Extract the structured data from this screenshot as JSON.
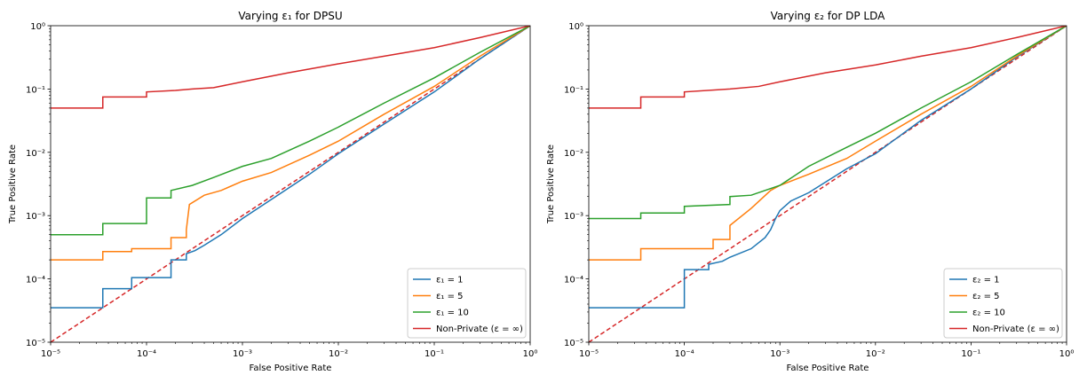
{
  "chart_data": [
    {
      "type": "line",
      "title": "Varying ε₁ for DPSU",
      "xlabel": "False Positive Rate",
      "ylabel": "True Positive Rate",
      "xscale": "log",
      "yscale": "log",
      "xlim": [
        1e-05,
        1
      ],
      "ylim": [
        1e-05,
        1
      ],
      "grid": false,
      "legend_position": "lower right",
      "x_tick_labels": [
        "10⁻⁵",
        "10⁻⁴",
        "10⁻³",
        "10⁻²",
        "10⁻¹",
        "10⁰"
      ],
      "y_tick_labels": [
        "10⁻⁵",
        "10⁻⁴",
        "10⁻³",
        "10⁻²",
        "10⁻¹",
        "10⁰"
      ],
      "series": [
        {
          "name": "ε₁ = 1",
          "color": "#1f77b4",
          "style": "steps",
          "points": [
            [
              1e-05,
              3.5e-05
            ],
            [
              3.5e-05,
              3.5e-05
            ],
            [
              3.5e-05,
              7e-05
            ],
            [
              7e-05,
              7e-05
            ],
            [
              7e-05,
              0.000105
            ],
            [
              0.00018,
              0.000105
            ],
            [
              0.00018,
              0.0002
            ],
            [
              0.00026,
              0.0002
            ],
            [
              0.00026,
              0.00025
            ],
            [
              0.00032,
              0.00028
            ],
            [
              0.0004,
              0.00034
            ],
            [
              0.0006,
              0.0005
            ],
            [
              0.001,
              0.0009
            ],
            [
              0.002,
              0.0018
            ],
            [
              0.005,
              0.0045
            ],
            [
              0.01,
              0.0095
            ],
            [
              0.03,
              0.028
            ],
            [
              0.1,
              0.09
            ],
            [
              0.3,
              0.3
            ],
            [
              1,
              1
            ]
          ]
        },
        {
          "name": "ε₁ = 5",
          "color": "#ff7f0e",
          "style": "steps",
          "points": [
            [
              1e-05,
              0.0002
            ],
            [
              3.5e-05,
              0.0002
            ],
            [
              3.5e-05,
              0.00027
            ],
            [
              7e-05,
              0.00027
            ],
            [
              7e-05,
              0.0003
            ],
            [
              0.00018,
              0.0003
            ],
            [
              0.00018,
              0.00045
            ],
            [
              0.00026,
              0.00045
            ],
            [
              0.00026,
              0.0006
            ],
            [
              0.00028,
              0.0015
            ],
            [
              0.0004,
              0.0021
            ],
            [
              0.0006,
              0.0025
            ],
            [
              0.001,
              0.0035
            ],
            [
              0.002,
              0.0048
            ],
            [
              0.005,
              0.009
            ],
            [
              0.01,
              0.015
            ],
            [
              0.03,
              0.04
            ],
            [
              0.1,
              0.11
            ],
            [
              0.3,
              0.33
            ],
            [
              1,
              1
            ]
          ]
        },
        {
          "name": "ε₁ = 10",
          "color": "#2ca02c",
          "style": "steps",
          "points": [
            [
              1e-05,
              0.0005
            ],
            [
              3.5e-05,
              0.0005
            ],
            [
              3.5e-05,
              0.00075
            ],
            [
              0.0001,
              0.00075
            ],
            [
              0.0001,
              0.0019
            ],
            [
              0.00018,
              0.0019
            ],
            [
              0.00018,
              0.0025
            ],
            [
              0.0003,
              0.003
            ],
            [
              0.0005,
              0.004
            ],
            [
              0.001,
              0.006
            ],
            [
              0.002,
              0.008
            ],
            [
              0.005,
              0.015
            ],
            [
              0.01,
              0.025
            ],
            [
              0.03,
              0.06
            ],
            [
              0.1,
              0.15
            ],
            [
              0.3,
              0.38
            ],
            [
              1,
              1
            ]
          ]
        },
        {
          "name": "Non-Private (ε = ∞)",
          "color": "#d62728",
          "style": "steps",
          "points": [
            [
              1e-05,
              0.05
            ],
            [
              3.5e-05,
              0.05
            ],
            [
              3.5e-05,
              0.075
            ],
            [
              0.0001,
              0.075
            ],
            [
              0.0001,
              0.09
            ],
            [
              0.0002,
              0.095
            ],
            [
              0.0003,
              0.1
            ],
            [
              0.0005,
              0.105
            ],
            [
              0.001,
              0.13
            ],
            [
              0.003,
              0.18
            ],
            [
              0.01,
              0.25
            ],
            [
              0.03,
              0.33
            ],
            [
              0.1,
              0.45
            ],
            [
              0.3,
              0.65
            ],
            [
              1,
              1
            ]
          ]
        }
      ],
      "reference_line": {
        "color": "#d62728",
        "dashed": true,
        "points": [
          [
            1e-05,
            1e-05
          ],
          [
            1,
            1
          ]
        ]
      }
    },
    {
      "type": "line",
      "title": "Varying ε₂ for DP LDA",
      "xlabel": "False Positive Rate",
      "ylabel": "True Positive Rate",
      "xscale": "log",
      "yscale": "log",
      "xlim": [
        1e-05,
        1
      ],
      "ylim": [
        1e-05,
        1
      ],
      "grid": false,
      "legend_position": "lower right",
      "x_tick_labels": [
        "10⁻⁵",
        "10⁻⁴",
        "10⁻³",
        "10⁻²",
        "10⁻¹",
        "10⁰"
      ],
      "y_tick_labels": [
        "10⁻⁵",
        "10⁻⁴",
        "10⁻³",
        "10⁻²",
        "10⁻¹",
        "10⁰"
      ],
      "series": [
        {
          "name": "ε₂ = 1",
          "color": "#1f77b4",
          "style": "steps",
          "points": [
            [
              1e-05,
              3.5e-05
            ],
            [
              0.0001,
              3.5e-05
            ],
            [
              0.0001,
              0.00014
            ],
            [
              0.00018,
              0.00014
            ],
            [
              0.00018,
              0.00017
            ],
            [
              0.00025,
              0.00019
            ],
            [
              0.0003,
              0.00022
            ],
            [
              0.0005,
              0.0003
            ],
            [
              0.0007,
              0.00045
            ],
            [
              0.0008,
              0.0006
            ],
            [
              0.0009,
              0.0009
            ],
            [
              0.001,
              0.0012
            ],
            [
              0.0013,
              0.0017
            ],
            [
              0.002,
              0.0023
            ],
            [
              0.005,
              0.0055
            ],
            [
              0.01,
              0.0095
            ],
            [
              0.03,
              0.032
            ],
            [
              0.1,
              0.1
            ],
            [
              0.3,
              0.32
            ],
            [
              1,
              1
            ]
          ]
        },
        {
          "name": "ε₂ = 5",
          "color": "#ff7f0e",
          "style": "steps",
          "points": [
            [
              1e-05,
              0.0002
            ],
            [
              3.5e-05,
              0.0002
            ],
            [
              3.5e-05,
              0.0003
            ],
            [
              0.0001,
              0.0003
            ],
            [
              0.0002,
              0.0003
            ],
            [
              0.0002,
              0.00042
            ],
            [
              0.0003,
              0.00042
            ],
            [
              0.0003,
              0.0007
            ],
            [
              0.0005,
              0.0013
            ],
            [
              0.0008,
              0.0025
            ],
            [
              0.001,
              0.003
            ],
            [
              0.002,
              0.0045
            ],
            [
              0.005,
              0.008
            ],
            [
              0.01,
              0.015
            ],
            [
              0.03,
              0.04
            ],
            [
              0.1,
              0.11
            ],
            [
              0.3,
              0.33
            ],
            [
              1,
              1
            ]
          ]
        },
        {
          "name": "ε₂ = 10",
          "color": "#2ca02c",
          "style": "steps",
          "points": [
            [
              1e-05,
              0.0009
            ],
            [
              3.5e-05,
              0.0009
            ],
            [
              3.5e-05,
              0.0011
            ],
            [
              0.0001,
              0.0011
            ],
            [
              0.0001,
              0.0014
            ],
            [
              0.0003,
              0.0015
            ],
            [
              0.0003,
              0.002
            ],
            [
              0.0005,
              0.0021
            ],
            [
              0.001,
              0.003
            ],
            [
              0.002,
              0.006
            ],
            [
              0.005,
              0.012
            ],
            [
              0.01,
              0.02
            ],
            [
              0.03,
              0.05
            ],
            [
              0.1,
              0.13
            ],
            [
              0.3,
              0.35
            ],
            [
              1,
              1
            ]
          ]
        },
        {
          "name": "Non-Private (ε = ∞)",
          "color": "#d62728",
          "style": "steps",
          "points": [
            [
              1e-05,
              0.05
            ],
            [
              3.5e-05,
              0.05
            ],
            [
              3.5e-05,
              0.075
            ],
            [
              0.0001,
              0.075
            ],
            [
              0.0001,
              0.09
            ],
            [
              0.0003,
              0.1
            ],
            [
              0.0006,
              0.11
            ],
            [
              0.001,
              0.13
            ],
            [
              0.003,
              0.18
            ],
            [
              0.01,
              0.24
            ],
            [
              0.03,
              0.33
            ],
            [
              0.1,
              0.45
            ],
            [
              0.3,
              0.65
            ],
            [
              1,
              1
            ]
          ]
        }
      ],
      "reference_line": {
        "color": "#d62728",
        "dashed": true,
        "points": [
          [
            1e-05,
            1e-05
          ],
          [
            1,
            1
          ]
        ]
      }
    }
  ]
}
